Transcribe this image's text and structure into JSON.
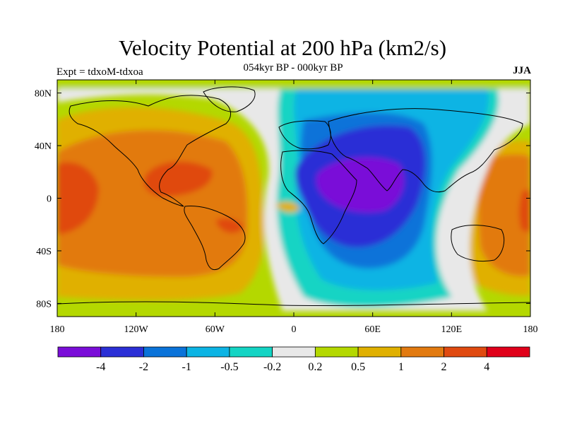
{
  "title": "Velocity Potential at 200 hPa (km2/s)",
  "subtitle": "054kyr BP - 000kyr BP",
  "left_label": "Expt = tdxoM-tdxoa",
  "right_label": "JJA",
  "map": {
    "lon_range": [
      -180,
      180
    ],
    "lat_range": [
      -90,
      90
    ],
    "lon_ticks": [
      {
        "value": -180,
        "label": "180"
      },
      {
        "value": -120,
        "label": "120W"
      },
      {
        "value": -60,
        "label": "60W"
      },
      {
        "value": 0,
        "label": "0"
      },
      {
        "value": 60,
        "label": "60E"
      },
      {
        "value": 120,
        "label": "120E"
      },
      {
        "value": 180,
        "label": "180"
      }
    ],
    "lat_ticks": [
      {
        "value": 80,
        "label": "80N"
      },
      {
        "value": 40,
        "label": "40N"
      },
      {
        "value": 0,
        "label": "0"
      },
      {
        "value": -40,
        "label": "40S"
      },
      {
        "value": -80,
        "label": "80S"
      }
    ]
  },
  "colorbar": {
    "colors": [
      "#7a0dd8",
      "#2b2fd6",
      "#0a73d9",
      "#0cb4e4",
      "#14d4c4",
      "#e8e8e8",
      "#b4d800",
      "#e0b000",
      "#e27a10",
      "#e04a10",
      "#e0001a"
    ],
    "labels": [
      "-4",
      "-2",
      "-1",
      "-0.5",
      "-0.2",
      "0.2",
      "0.5",
      "1",
      "2",
      "4"
    ]
  }
}
